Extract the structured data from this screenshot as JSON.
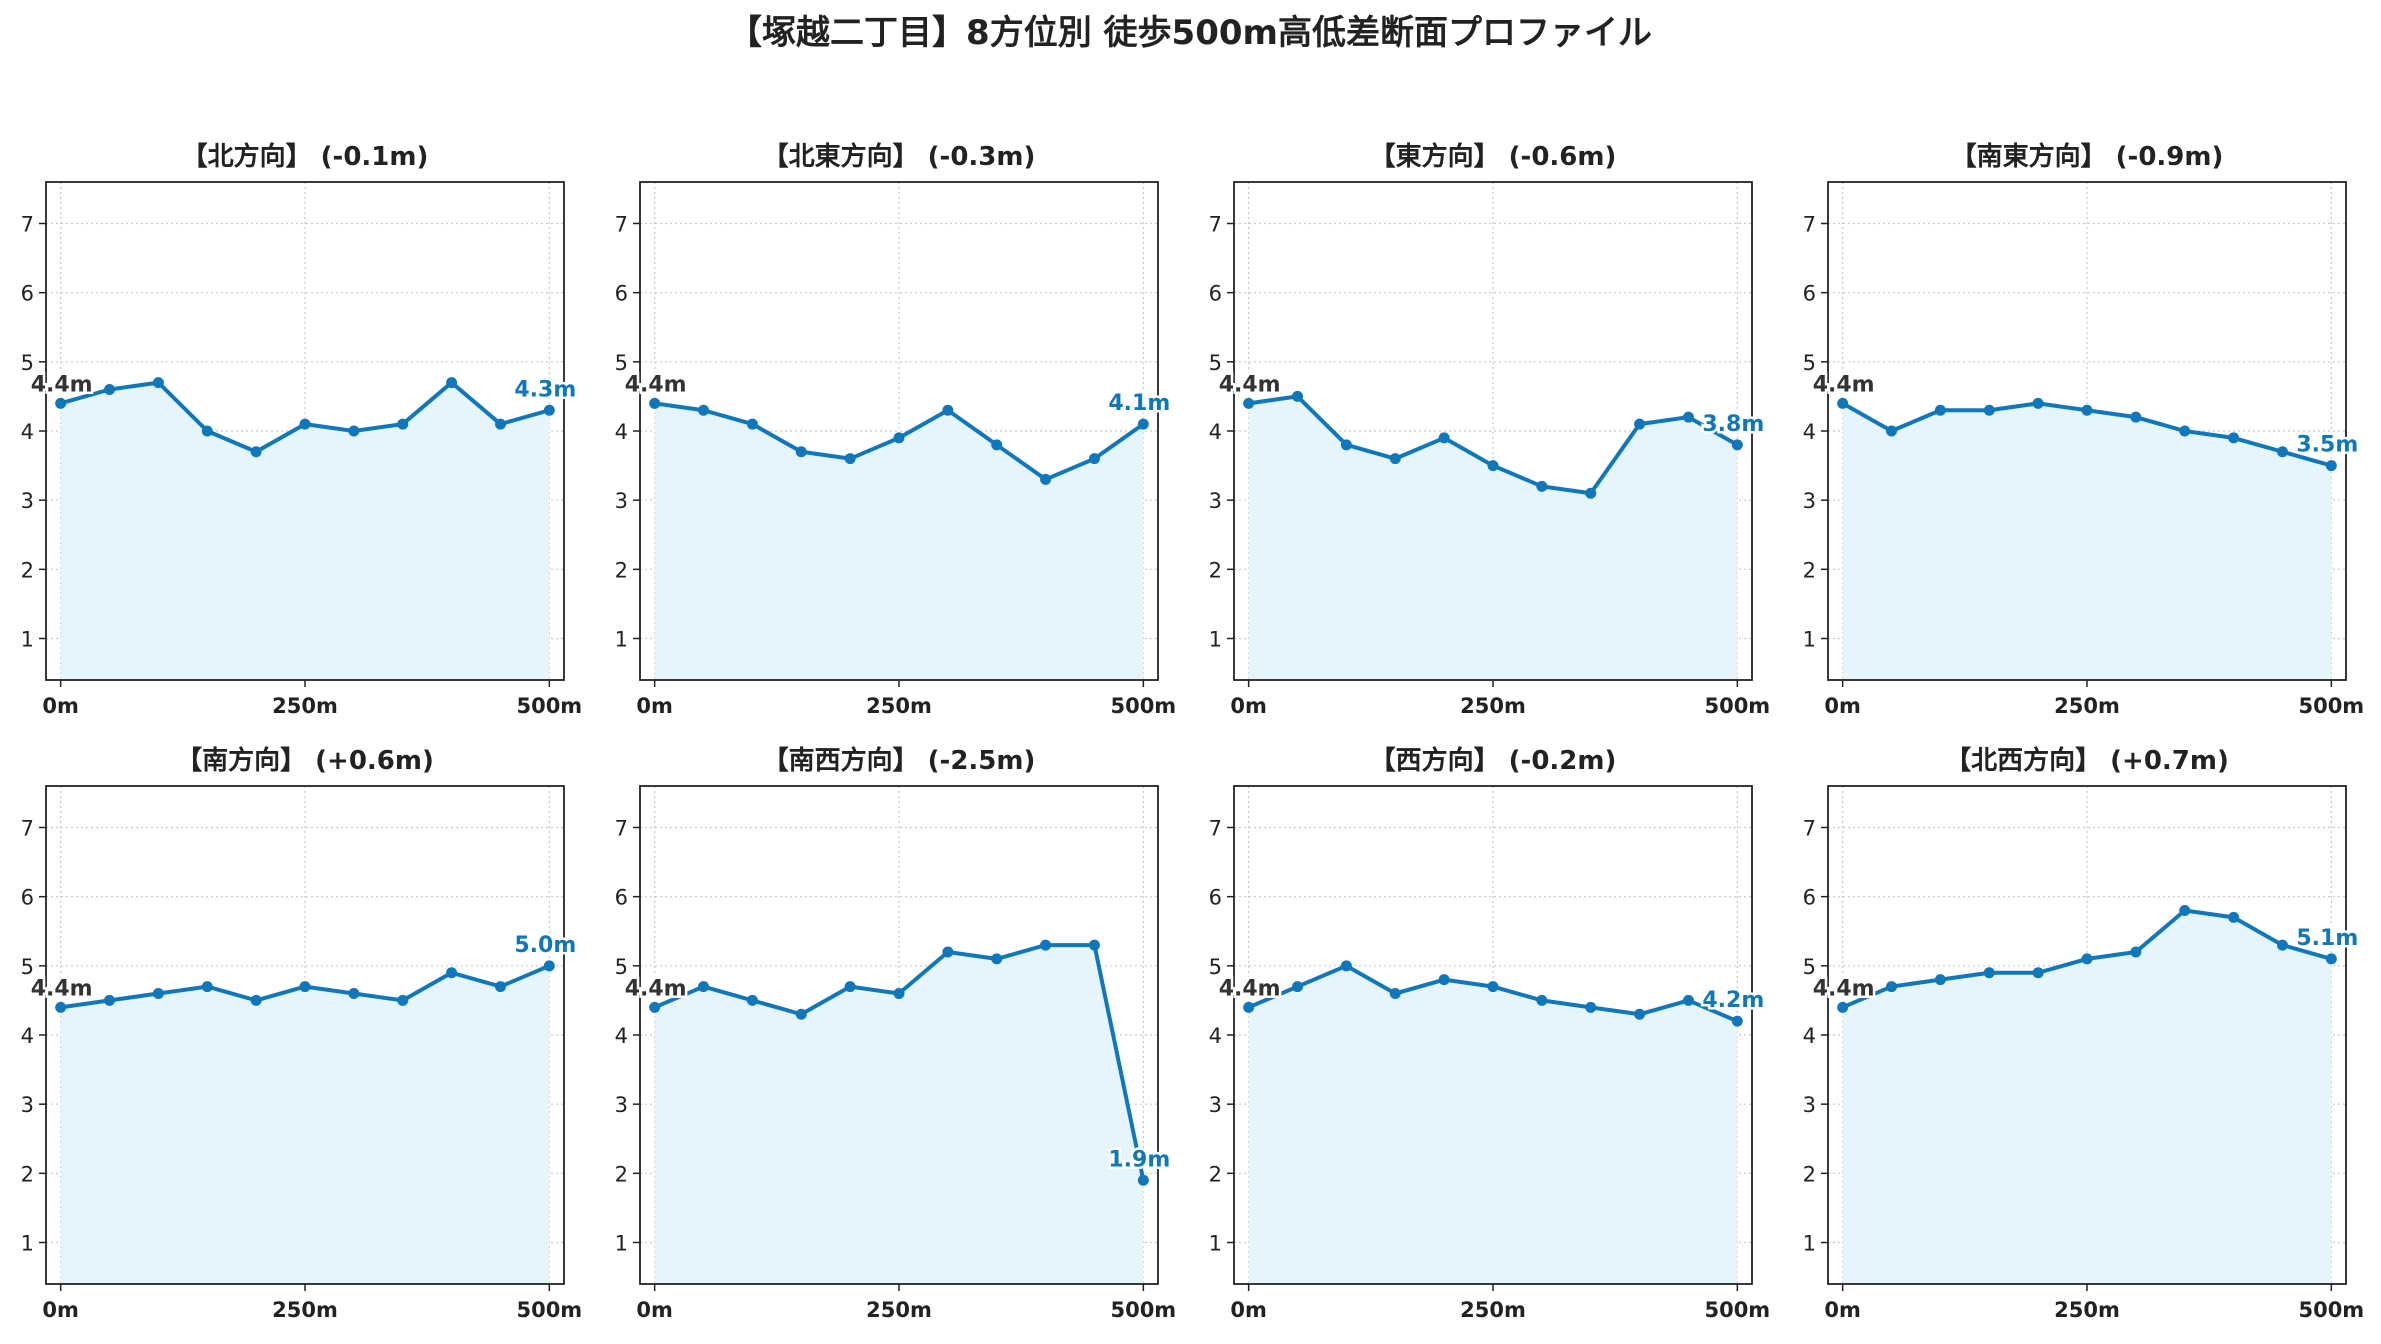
{
  "page": {
    "title": "【塚越二丁目】8方位別 徒歩500m高低差断面プロファイル"
  },
  "colors": {
    "line": "#1177bb",
    "fill": "#e6f4fb",
    "grid": "#c8c8c8",
    "start_label": "#333333",
    "end_label": "#1177bb"
  },
  "chart_data": [
    {
      "type": "area",
      "title": "【北方向】 (-0.1m)",
      "x": [
        0,
        50,
        100,
        150,
        200,
        250,
        300,
        350,
        400,
        450,
        500
      ],
      "x_tick_values": [
        0,
        250,
        500
      ],
      "x_tick_labels": [
        "0m",
        "250m",
        "500m"
      ],
      "y_ticks": [
        1,
        2,
        3,
        4,
        5,
        6,
        7
      ],
      "xlim": [
        -15,
        515
      ],
      "ylim": [
        0.4,
        7.6
      ],
      "grid": true,
      "series": [
        {
          "values": [
            4.4,
            4.6,
            4.7,
            4.0,
            3.7,
            4.1,
            4.0,
            4.1,
            4.7,
            4.1,
            4.3
          ]
        }
      ],
      "start_label": "4.4m",
      "end_label": "4.3m"
    },
    {
      "type": "area",
      "title": "【北東方向】 (-0.3m)",
      "x": [
        0,
        50,
        100,
        150,
        200,
        250,
        300,
        350,
        400,
        450,
        500
      ],
      "x_tick_values": [
        0,
        250,
        500
      ],
      "x_tick_labels": [
        "0m",
        "250m",
        "500m"
      ],
      "y_ticks": [
        1,
        2,
        3,
        4,
        5,
        6,
        7
      ],
      "xlim": [
        -15,
        515
      ],
      "ylim": [
        0.4,
        7.6
      ],
      "grid": true,
      "series": [
        {
          "values": [
            4.4,
            4.3,
            4.1,
            3.7,
            3.6,
            3.9,
            4.3,
            3.8,
            3.3,
            3.6,
            4.1
          ]
        }
      ],
      "start_label": "4.4m",
      "end_label": "4.1m"
    },
    {
      "type": "area",
      "title": "【東方向】 (-0.6m)",
      "x": [
        0,
        50,
        100,
        150,
        200,
        250,
        300,
        350,
        400,
        450,
        500
      ],
      "x_tick_values": [
        0,
        250,
        500
      ],
      "x_tick_labels": [
        "0m",
        "250m",
        "500m"
      ],
      "y_ticks": [
        1,
        2,
        3,
        4,
        5,
        6,
        7
      ],
      "xlim": [
        -15,
        515
      ],
      "ylim": [
        0.4,
        7.6
      ],
      "grid": true,
      "series": [
        {
          "values": [
            4.4,
            4.5,
            3.8,
            3.6,
            3.9,
            3.5,
            3.2,
            3.1,
            4.1,
            4.2,
            3.8
          ]
        }
      ],
      "start_label": "4.4m",
      "end_label": "3.8m"
    },
    {
      "type": "area",
      "title": "【南東方向】 (-0.9m)",
      "x": [
        0,
        50,
        100,
        150,
        200,
        250,
        300,
        350,
        400,
        450,
        500
      ],
      "x_tick_values": [
        0,
        250,
        500
      ],
      "x_tick_labels": [
        "0m",
        "250m",
        "500m"
      ],
      "y_ticks": [
        1,
        2,
        3,
        4,
        5,
        6,
        7
      ],
      "xlim": [
        -15,
        515
      ],
      "ylim": [
        0.4,
        7.6
      ],
      "grid": true,
      "series": [
        {
          "values": [
            4.4,
            4.0,
            4.3,
            4.3,
            4.4,
            4.3,
            4.2,
            4.0,
            3.9,
            3.7,
            3.5
          ]
        }
      ],
      "start_label": "4.4m",
      "end_label": "3.5m"
    },
    {
      "type": "area",
      "title": "【南方向】 (+0.6m)",
      "x": [
        0,
        50,
        100,
        150,
        200,
        250,
        300,
        350,
        400,
        450,
        500
      ],
      "x_tick_values": [
        0,
        250,
        500
      ],
      "x_tick_labels": [
        "0m",
        "250m",
        "500m"
      ],
      "y_ticks": [
        1,
        2,
        3,
        4,
        5,
        6,
        7
      ],
      "xlim": [
        -15,
        515
      ],
      "ylim": [
        0.4,
        7.6
      ],
      "grid": true,
      "series": [
        {
          "values": [
            4.4,
            4.5,
            4.6,
            4.7,
            4.5,
            4.7,
            4.6,
            4.5,
            4.9,
            4.7,
            5.0
          ]
        }
      ],
      "start_label": "4.4m",
      "end_label": "5.0m"
    },
    {
      "type": "area",
      "title": "【南西方向】 (-2.5m)",
      "x": [
        0,
        50,
        100,
        150,
        200,
        250,
        300,
        350,
        400,
        450,
        500
      ],
      "x_tick_values": [
        0,
        250,
        500
      ],
      "x_tick_labels": [
        "0m",
        "250m",
        "500m"
      ],
      "y_ticks": [
        1,
        2,
        3,
        4,
        5,
        6,
        7
      ],
      "xlim": [
        -15,
        515
      ],
      "ylim": [
        0.4,
        7.6
      ],
      "grid": true,
      "series": [
        {
          "values": [
            4.4,
            4.7,
            4.5,
            4.3,
            4.7,
            4.6,
            5.2,
            5.1,
            5.3,
            5.3,
            1.9
          ]
        }
      ],
      "start_label": "4.4m",
      "end_label": "1.9m"
    },
    {
      "type": "area",
      "title": "【西方向】 (-0.2m)",
      "x": [
        0,
        50,
        100,
        150,
        200,
        250,
        300,
        350,
        400,
        450,
        500
      ],
      "x_tick_values": [
        0,
        250,
        500
      ],
      "x_tick_labels": [
        "0m",
        "250m",
        "500m"
      ],
      "y_ticks": [
        1,
        2,
        3,
        4,
        5,
        6,
        7
      ],
      "xlim": [
        -15,
        515
      ],
      "ylim": [
        0.4,
        7.6
      ],
      "grid": true,
      "series": [
        {
          "values": [
            4.4,
            4.7,
            5.0,
            4.6,
            4.8,
            4.7,
            4.5,
            4.4,
            4.3,
            4.5,
            4.2
          ]
        }
      ],
      "start_label": "4.4m",
      "end_label": "4.2m"
    },
    {
      "type": "area",
      "title": "【北西方向】 (+0.7m)",
      "x": [
        0,
        50,
        100,
        150,
        200,
        250,
        300,
        350,
        400,
        450,
        500
      ],
      "x_tick_values": [
        0,
        250,
        500
      ],
      "x_tick_labels": [
        "0m",
        "250m",
        "500m"
      ],
      "y_ticks": [
        1,
        2,
        3,
        4,
        5,
        6,
        7
      ],
      "xlim": [
        -15,
        515
      ],
      "ylim": [
        0.4,
        7.6
      ],
      "grid": true,
      "series": [
        {
          "values": [
            4.4,
            4.7,
            4.8,
            4.9,
            4.9,
            5.1,
            5.2,
            5.8,
            5.7,
            5.3,
            5.1
          ]
        }
      ],
      "start_label": "4.4m",
      "end_label": "5.1m"
    }
  ]
}
